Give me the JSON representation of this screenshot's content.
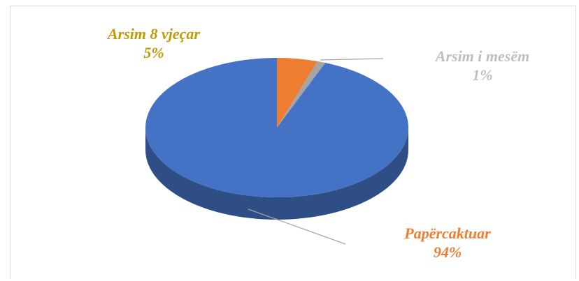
{
  "chart_data": {
    "type": "pie",
    "title": "",
    "categories": [
      "Arsim 8 vjeçar",
      "Arsim i mesëm",
      "Papërcaktuar"
    ],
    "values": [
      5,
      1,
      94
    ],
    "labels": [
      {
        "name": "Arsim 8 vjeçar",
        "value": "5%"
      },
      {
        "name": "Arsim i mesëm",
        "value": "1%"
      },
      {
        "name": "Papërcaktuar",
        "value": "94%"
      }
    ],
    "colors": [
      "#ed7d31",
      "#a5a5a5",
      "#4472c4"
    ],
    "label_colors": [
      "#c09a06",
      "#bfbfbf",
      "#ed7d31"
    ],
    "style": "3d"
  }
}
